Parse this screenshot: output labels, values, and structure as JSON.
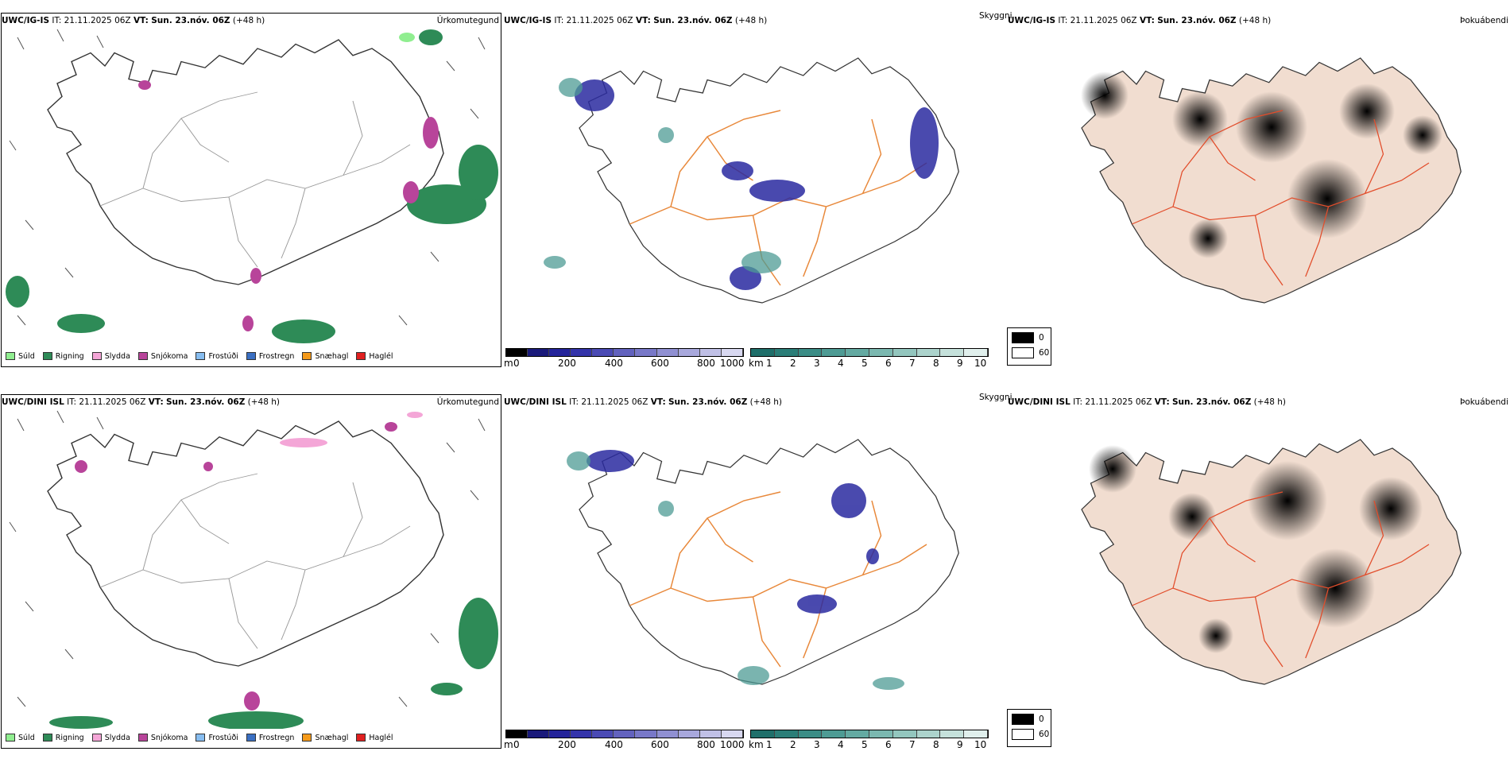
{
  "rows": [
    {
      "model": "UWC/IG-IS",
      "it_label": "IT:",
      "it_value": "21.11.2025 06Z",
      "vt_label": "VT:",
      "vt_value": "Sun. 23.nóv. 06Z",
      "lead": "(+48 h)"
    },
    {
      "model": "UWC/DINI ISL",
      "it_label": "IT:",
      "it_value": "21.11.2025 06Z",
      "vt_label": "VT:",
      "vt_value": "Sun. 23.nóv. 06Z",
      "lead": "(+48 h)"
    }
  ],
  "panel_titles": {
    "precip": "Úrkomutegund",
    "cloud": "Skyggni",
    "fog": "Þokuábendi"
  },
  "precip_legend": [
    {
      "label": "Súld",
      "color": "#90ee90"
    },
    {
      "label": "Rigning",
      "color": "#2e8b57"
    },
    {
      "label": "Slydda",
      "color": "#f4a6d7"
    },
    {
      "label": "Snjókoma",
      "color": "#b8449a"
    },
    {
      "label": "Frostúði",
      "color": "#87bdf0"
    },
    {
      "label": "Frostregn",
      "color": "#3a6fc2"
    },
    {
      "label": "Snæhagl",
      "color": "#f59a1a"
    },
    {
      "label": "Haglél",
      "color": "#e02020"
    }
  ],
  "cloud_base_bar": {
    "unit": "m",
    "ticks": [
      "0",
      "200",
      "400",
      "600",
      "800",
      "1000"
    ],
    "colors": [
      "#000000",
      "#1a1a7a",
      "#23239a",
      "#3434aa",
      "#4a4ab4",
      "#6262be",
      "#7878c8",
      "#9090d2",
      "#a8a8dc",
      "#c0c0e6",
      "#d8d8f0"
    ]
  },
  "visibility_bar": {
    "unit": "km",
    "ticks": [
      "1",
      "2",
      "3",
      "4",
      "5",
      "6",
      "7",
      "8",
      "9",
      "10"
    ],
    "colors": [
      "#1f6f6a",
      "#2b7e78",
      "#3b8d86",
      "#4e9b94",
      "#64aaa2",
      "#7bb8b0",
      "#93c6be",
      "#acd3cc",
      "#c5e1db",
      "#e0efec"
    ]
  },
  "fog_legend": [
    {
      "label": "0",
      "color": "#000000"
    },
    {
      "label": "60",
      "color": "#ffffff"
    }
  ],
  "icons": [
    "wind-barb-icon",
    "iceland-coastline-icon",
    "road-network-icon"
  ]
}
